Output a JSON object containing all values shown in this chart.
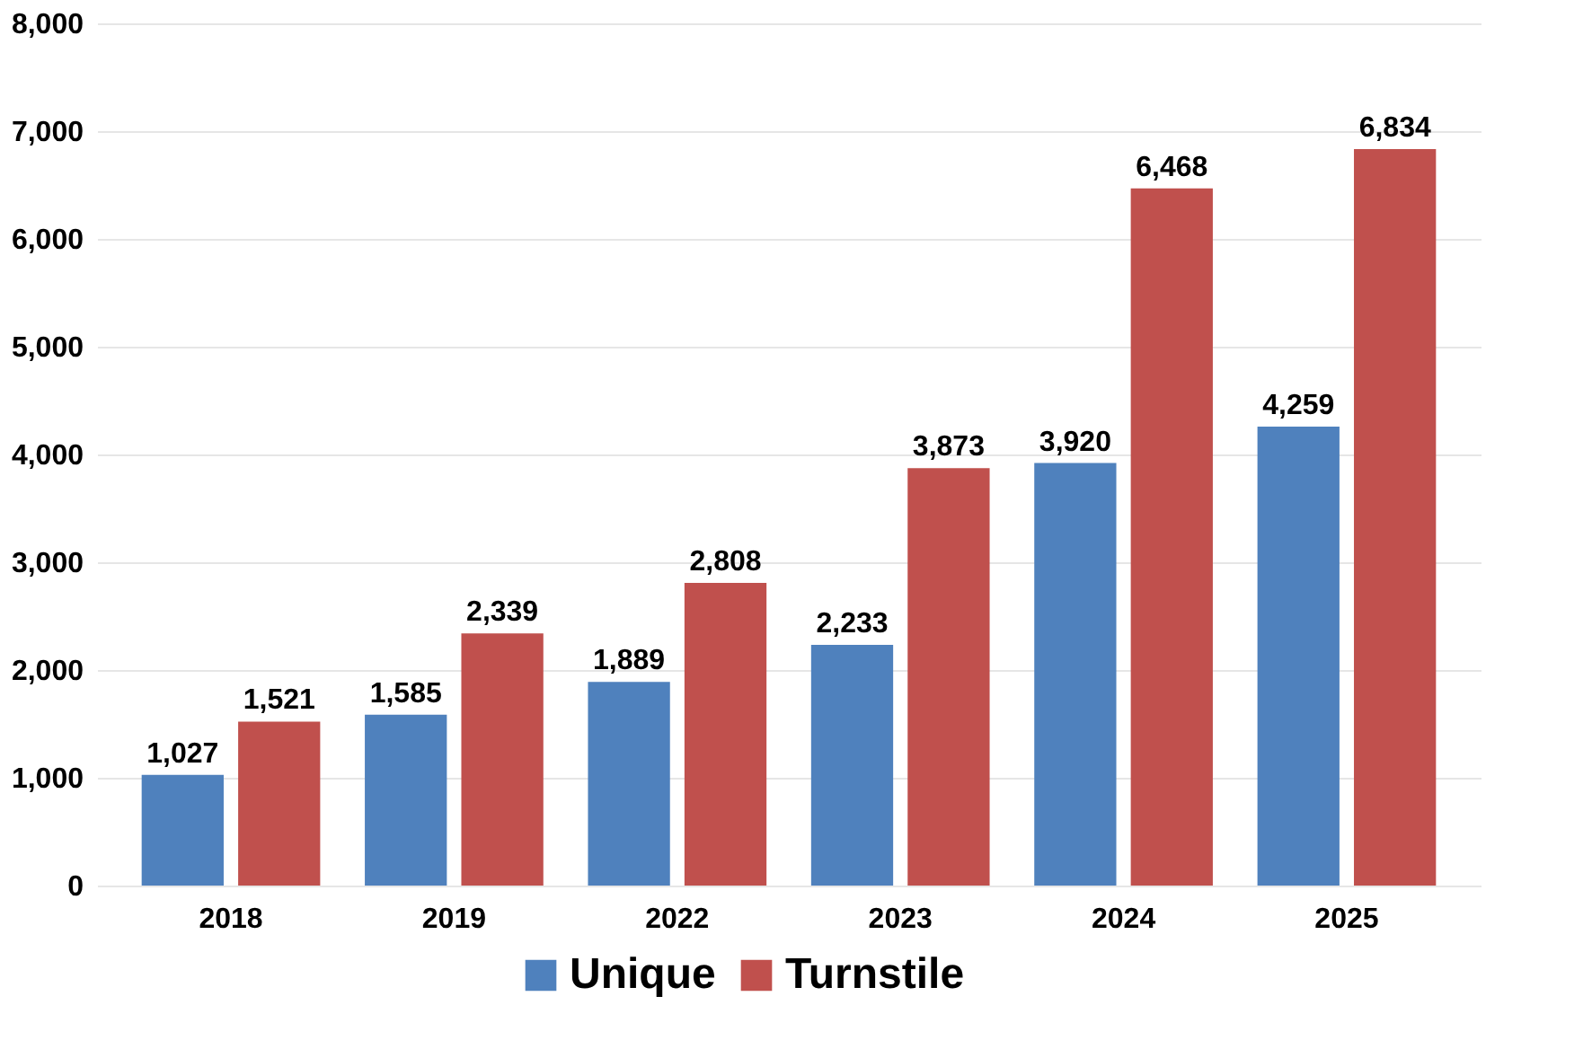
{
  "chart_data": {
    "type": "bar",
    "categories": [
      "2018",
      "2019",
      "2022",
      "2023",
      "2024",
      "2025"
    ],
    "series": [
      {
        "name": "Unique",
        "color": "#4f81bd",
        "values": [
          1027,
          1585,
          1889,
          2233,
          3920,
          4259
        ],
        "value_labels": [
          "1,027",
          "1,585",
          "1,889",
          "2,233",
          "3,920",
          "4,259"
        ]
      },
      {
        "name": "Turnstile",
        "color": "#c0504d",
        "values": [
          1521,
          2339,
          2808,
          3873,
          6468,
          6834
        ],
        "value_labels": [
          "1,521",
          "2,339",
          "2,808",
          "3,873",
          "6,468",
          "6,834"
        ]
      }
    ],
    "ylim": [
      0,
      8000
    ],
    "yticks": [
      {
        "value": 0,
        "label": "0"
      },
      {
        "value": 1000,
        "label": "1,000"
      },
      {
        "value": 2000,
        "label": "2,000"
      },
      {
        "value": 3000,
        "label": "3,000"
      },
      {
        "value": 4000,
        "label": "4,000"
      },
      {
        "value": 5000,
        "label": "5,000"
      },
      {
        "value": 6000,
        "label": "6,000"
      },
      {
        "value": 7000,
        "label": "7,000"
      },
      {
        "value": 8000,
        "label": "8,000"
      }
    ],
    "grid": "y",
    "legend": "bottom"
  }
}
